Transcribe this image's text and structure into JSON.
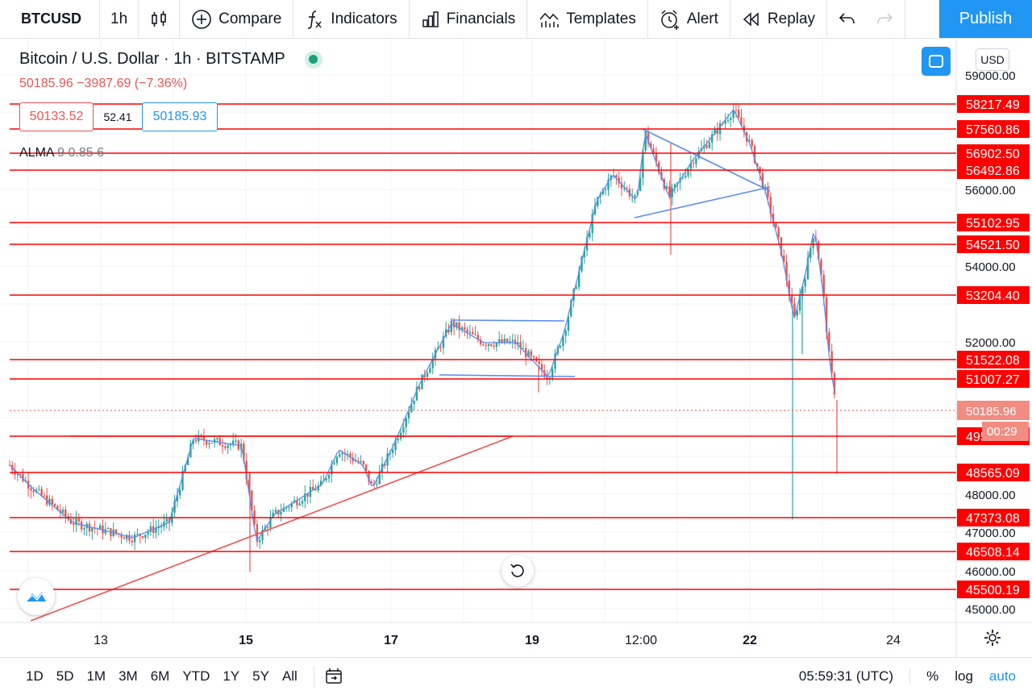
{
  "toolbar": {
    "symbol": "BTCUSD",
    "interval": "1h",
    "compare": "Compare",
    "indicators": "Indicators",
    "financials": "Financials",
    "templates": "Templates",
    "alert": "Alert",
    "replay": "Replay",
    "publish": "Publish"
  },
  "legend": {
    "title": "Bitcoin / U.S. Dollar · 1h · BITSTAMP",
    "change": "50185.96 −3987.69 (−7.36%)",
    "sell": "50133.52",
    "spread": "52.41",
    "buy": "50185.93",
    "indicator_name": "ALMA",
    "indicator_params": "9 0.85 6"
  },
  "currency": "USD",
  "price_axis": {
    "ticks": [
      "59000.00",
      "56000.00",
      "54000.00",
      "52000.00",
      "48000.00",
      "47000.00",
      "46000.00",
      "45000.00"
    ],
    "current_price": "50185.96",
    "countdown": "00:29",
    "level_labels": [
      "58217.49",
      "57560.86",
      "56902.50",
      "56492.86",
      "55102.95",
      "54521.50",
      "53204.40",
      "51522.08",
      "51007.27",
      "49516.42",
      "48565.09",
      "47373.08",
      "46508.14",
      "45500.19"
    ]
  },
  "time_axis": {
    "ticks": [
      "13",
      "15",
      "17",
      "19",
      "12:00",
      "22",
      "24"
    ]
  },
  "bottom": {
    "ranges": [
      "1D",
      "5D",
      "1M",
      "3M",
      "6M",
      "YTD",
      "1Y",
      "5Y",
      "All"
    ],
    "clock": "05:59:31 (UTC)",
    "percent": "%",
    "log": "log",
    "auto": "auto"
  },
  "colors": {
    "up": "#26a69a",
    "down": "#ef5350",
    "level_line": "#ff0000",
    "trend_blue": "#5b8def",
    "accent": "#2196f3"
  }
}
